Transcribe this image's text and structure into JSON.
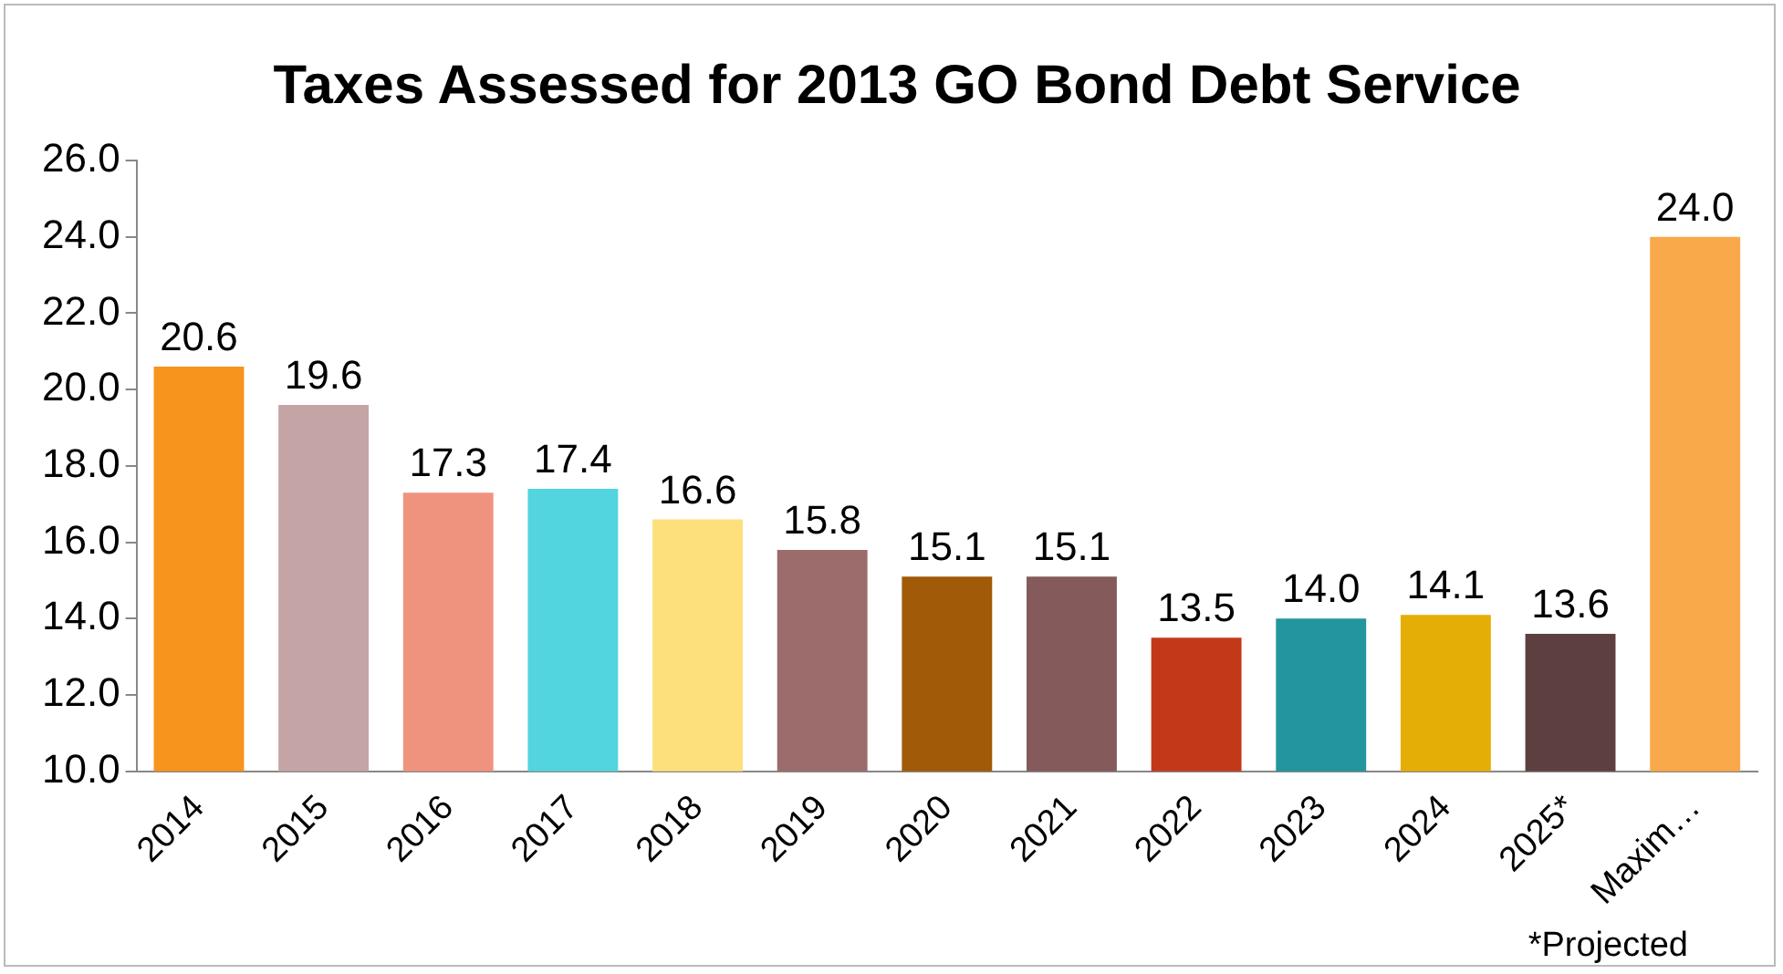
{
  "chart_data": {
    "type": "bar",
    "title": "Taxes Assessed for 2013 GO Bond Debt Service",
    "categories": [
      "2014",
      "2015",
      "2016",
      "2017",
      "2018",
      "2019",
      "2020",
      "2021",
      "2022",
      "2023",
      "2024",
      "2025*",
      "Maxim…"
    ],
    "values": [
      20.6,
      19.6,
      17.3,
      17.4,
      16.6,
      15.8,
      15.1,
      15.1,
      13.5,
      14.0,
      14.1,
      13.6,
      24.0
    ],
    "value_labels": [
      "20.6",
      "19.6",
      "17.3",
      "17.4",
      "16.6",
      "15.8",
      "15.1",
      "15.1",
      "13.5",
      "14.0",
      "14.1",
      "13.6",
      "24.0"
    ],
    "colors": [
      "#f7941d",
      "#c4a4a4",
      "#f0937e",
      "#52d5df",
      "#fde07c",
      "#9c6b6b",
      "#a05a08",
      "#845a5a",
      "#c4381a",
      "#22959e",
      "#e5ae06",
      "#5e3f3f",
      "#f9a94a"
    ],
    "ylim": [
      10,
      26
    ],
    "yticks": [
      {
        "value": 10,
        "label": "10.0"
      },
      {
        "value": 12,
        "label": "12.0"
      },
      {
        "value": 14,
        "label": "14.0"
      },
      {
        "value": 16,
        "label": "16.0"
      },
      {
        "value": 18,
        "label": "18.0"
      },
      {
        "value": 20,
        "label": "20.0"
      },
      {
        "value": 22,
        "label": "22.0"
      },
      {
        "value": 24,
        "label": "24.0"
      },
      {
        "value": 26,
        "label": "26.0"
      }
    ],
    "grid": false,
    "legend": false,
    "annotations": [
      "*Projected"
    ]
  }
}
